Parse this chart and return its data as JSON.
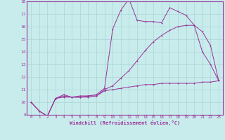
{
  "xlabel": "Windchill (Refroidissement éolien,°C)",
  "bg_color": "#c8ecec",
  "grid_color": "#b0d8d8",
  "line_color": "#993399",
  "spine_color": "#993399",
  "xlim": [
    -0.5,
    23.5
  ],
  "ylim": [
    9,
    18
  ],
  "xticks": [
    0,
    1,
    2,
    3,
    4,
    5,
    6,
    7,
    8,
    9,
    10,
    11,
    12,
    13,
    14,
    15,
    16,
    17,
    18,
    19,
    20,
    21,
    22,
    23
  ],
  "yticks": [
    9,
    10,
    11,
    12,
    13,
    14,
    15,
    16,
    17,
    18
  ],
  "line1_x": [
    0,
    1,
    2,
    3,
    4,
    5,
    6,
    7,
    8,
    9,
    10,
    11,
    12,
    13,
    14,
    15,
    16,
    17,
    18,
    19,
    20,
    21,
    22,
    23
  ],
  "line1_y": [
    10.0,
    9.3,
    8.9,
    10.3,
    10.6,
    10.4,
    10.5,
    10.5,
    10.6,
    11.1,
    15.8,
    17.3,
    18.2,
    16.5,
    16.4,
    16.4,
    16.3,
    17.5,
    17.2,
    16.9,
    16.1,
    14.0,
    13.0,
    11.7
  ],
  "line2_x": [
    0,
    1,
    2,
    3,
    4,
    5,
    6,
    7,
    8,
    9,
    10,
    11,
    12,
    13,
    14,
    15,
    16,
    17,
    18,
    19,
    20,
    21,
    22,
    23
  ],
  "line2_y": [
    10.0,
    9.3,
    8.9,
    10.3,
    10.5,
    10.4,
    10.4,
    10.5,
    10.5,
    11.0,
    11.3,
    11.9,
    12.5,
    13.3,
    14.1,
    14.8,
    15.3,
    15.7,
    16.0,
    16.1,
    16.1,
    15.6,
    14.5,
    11.7
  ],
  "line3_x": [
    0,
    1,
    2,
    3,
    4,
    5,
    6,
    7,
    8,
    9,
    10,
    11,
    12,
    13,
    14,
    15,
    16,
    17,
    18,
    19,
    20,
    21,
    22,
    23
  ],
  "line3_y": [
    10.0,
    9.3,
    8.9,
    10.3,
    10.4,
    10.4,
    10.4,
    10.4,
    10.5,
    10.9,
    11.0,
    11.1,
    11.2,
    11.3,
    11.4,
    11.4,
    11.5,
    11.5,
    11.5,
    11.5,
    11.5,
    11.6,
    11.6,
    11.7
  ]
}
